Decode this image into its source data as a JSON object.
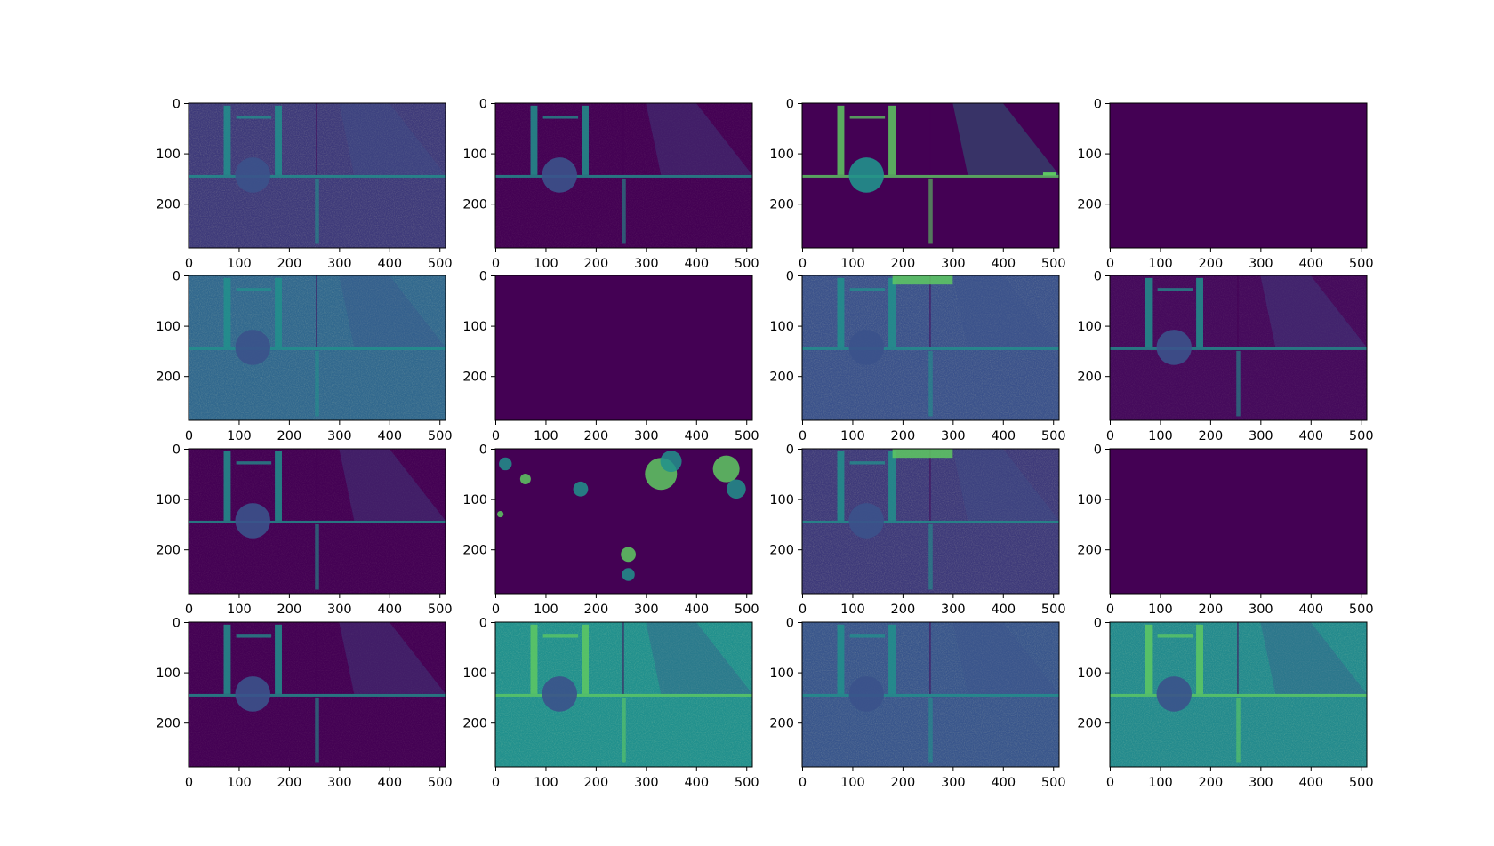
{
  "figure": {
    "background": "#ffffff",
    "layout": "4x4 grid of image subplots",
    "colormap": "viridis"
  },
  "chart_data": {
    "type": "heatmap",
    "rows": 4,
    "cols": 4,
    "image_extent": {
      "x": [
        0,
        512
      ],
      "y": [
        0,
        288
      ]
    },
    "xticks": [
      0,
      100,
      200,
      300,
      400,
      500
    ],
    "yticks": [
      0,
      100,
      200
    ],
    "colors": {
      "dark": "#440154",
      "blue": "#3b528b",
      "teal": "#21918c",
      "green": "#5ec962",
      "yellow": "#fde725"
    },
    "panels": [
      {
        "index": 1,
        "pattern": "scene",
        "base": "#3e3a7a",
        "mean_intensity": 0.3
      },
      {
        "index": 2,
        "pattern": "edges",
        "base": "#440154",
        "mean_intensity": 0.12
      },
      {
        "index": 3,
        "pattern": "bright-arch",
        "base": "#440154",
        "mean_intensity": 0.1
      },
      {
        "index": 4,
        "pattern": "blank",
        "base": "#440154",
        "mean_intensity": 0.0
      },
      {
        "index": 5,
        "pattern": "scene",
        "base": "#31688e",
        "mean_intensity": 0.45
      },
      {
        "index": 6,
        "pattern": "blank",
        "base": "#440154",
        "mean_intensity": 0.0
      },
      {
        "index": 7,
        "pattern": "scene",
        "base": "#3b528b",
        "mean_intensity": 0.4
      },
      {
        "index": 8,
        "pattern": "edges",
        "base": "#450a5c",
        "mean_intensity": 0.14
      },
      {
        "index": 9,
        "pattern": "edges",
        "base": "#440154",
        "mean_intensity": 0.12
      },
      {
        "index": 10,
        "pattern": "blobs",
        "base": "#440154",
        "mean_intensity": 0.08
      },
      {
        "index": 11,
        "pattern": "scene",
        "base": "#3e3a7a",
        "mean_intensity": 0.33
      },
      {
        "index": 12,
        "pattern": "blank",
        "base": "#440154",
        "mean_intensity": 0.0
      },
      {
        "index": 13,
        "pattern": "edges",
        "base": "#440154",
        "mean_intensity": 0.1
      },
      {
        "index": 14,
        "pattern": "scene",
        "base": "#21908d",
        "mean_intensity": 0.55
      },
      {
        "index": 15,
        "pattern": "scene",
        "base": "#39568c",
        "mean_intensity": 0.42
      },
      {
        "index": 16,
        "pattern": "scene",
        "base": "#238a8d",
        "mean_intensity": 0.55
      }
    ]
  }
}
